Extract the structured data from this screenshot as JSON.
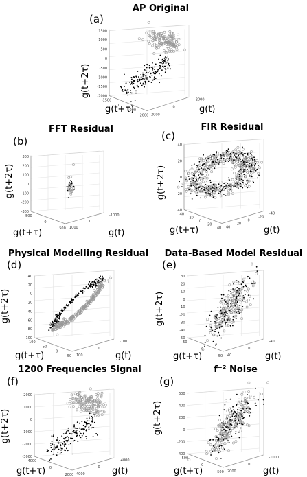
{
  "figure": {
    "panels": [
      {
        "id": "a",
        "letter": "(a)",
        "title": "AP Original",
        "xlabel": "g(t)",
        "ylabel": "g(t+τ)",
        "zlabel": "g(t+2τ)",
        "ticks_z": [
          "-2000",
          "-1500",
          "-1000",
          "-500",
          "0",
          "500",
          "1000",
          "1500"
        ],
        "ticks_y": [
          "-1500",
          "0",
          "1000",
          "2000"
        ],
        "ticks_x": [
          "-2000",
          "0",
          "2000"
        ]
      },
      {
        "id": "b",
        "letter": "(b)",
        "title": "FFT Residual",
        "xlabel": "g(t)",
        "ylabel": "g(t+τ)",
        "zlabel": "g(t+2τ)",
        "ticks_z": [
          "-300",
          "-200",
          "-100",
          "0",
          "100",
          "200",
          "300"
        ],
        "ticks_y": [
          "-500",
          "0",
          "500"
        ],
        "ticks_x": [
          "-1000",
          "0",
          "1000"
        ]
      },
      {
        "id": "c",
        "letter": "(c)",
        "title": "FIR Residual",
        "xlabel": "g(t)",
        "ylabel": "g(t+τ)",
        "zlabel": "g(t+2τ)",
        "ticks_z": [
          "-40",
          "-20",
          "0",
          "20",
          "40"
        ],
        "ticks_y": [
          "-40",
          "-20",
          "0",
          "20",
          "40"
        ],
        "ticks_x": [
          "-40",
          "-20",
          "0",
          "20",
          "40"
        ]
      },
      {
        "id": "d",
        "letter": "(d)",
        "title": "Physical Modelling Residual",
        "xlabel": "g(t)",
        "ylabel": "g(t+τ)",
        "zlabel": "g(t+2τ)",
        "ticks_z": [
          "-100",
          "-80",
          "-60",
          "-40",
          "-20",
          "0",
          "20",
          "40"
        ],
        "ticks_y": [
          "-100",
          "-50",
          "0",
          "50"
        ],
        "ticks_x": [
          "-100",
          "0",
          "100"
        ]
      },
      {
        "id": "e",
        "letter": "(e)",
        "title": "Data-Based Model Residual",
        "xlabel": "g(t)",
        "ylabel": "g(t+τ)",
        "zlabel": "g(t+2τ)",
        "ticks_z": [
          "-50",
          "-40",
          "-30",
          "-20",
          "-10",
          "0",
          "10",
          "20",
          "30"
        ],
        "ticks_y": [
          "-50",
          "0",
          "50"
        ],
        "ticks_x": [
          "-40",
          "0",
          "40"
        ]
      },
      {
        "id": "f",
        "letter": "(f)",
        "title": "1200 Frequencies Signal",
        "xlabel": "g(t)",
        "ylabel": "g(t+τ)",
        "zlabel": "g(t+2τ)",
        "ticks_z": [
          "-3000",
          "-2000",
          "-1000",
          "0",
          "1000",
          "2000"
        ],
        "ticks_y": [
          "-4000",
          "0",
          "2000"
        ],
        "ticks_x": [
          "-4000",
          "0",
          "4000"
        ]
      },
      {
        "id": "g",
        "letter": "(g)",
        "title": "f⁻² Noise",
        "xlabel": "g(t)",
        "ylabel": "g(t+τ)",
        "zlabel": "g(t+2τ)",
        "ticks_z": [
          "-400",
          "-200",
          "0",
          "200",
          "400",
          "600"
        ],
        "ticks_y": [
          "-500",
          "0",
          "500"
        ],
        "ticks_x": [
          "-1000",
          "0",
          "2000"
        ]
      }
    ]
  },
  "chart_data": [
    {
      "type": "scatter",
      "title": "AP Original",
      "xlabel": "g(t)",
      "ylabel": "g(t+τ)",
      "zlabel": "g(t+2τ)",
      "series": [
        {
          "color": "#999999",
          "marker": "o"
        },
        {
          "color": "#000000",
          "marker": "."
        }
      ],
      "shape": "two-cluster",
      "zlim": [
        -2000,
        1500
      ]
    },
    {
      "type": "scatter",
      "title": "FFT Residual",
      "xlabel": "g(t)",
      "ylabel": "g(t+τ)",
      "zlabel": "g(t+2τ)",
      "series": [
        {
          "color": "#999999",
          "marker": "o"
        },
        {
          "color": "#000000",
          "marker": "."
        }
      ],
      "shape": "compact-cluster",
      "zlim": [
        -300,
        300
      ]
    },
    {
      "type": "scatter",
      "title": "FIR Residual",
      "xlabel": "g(t)",
      "ylabel": "g(t+τ)",
      "zlabel": "g(t+2τ)",
      "series": [
        {
          "color": "#999999",
          "marker": "o"
        },
        {
          "color": "#000000",
          "marker": "."
        }
      ],
      "shape": "ring",
      "zlim": [
        -40,
        40
      ]
    },
    {
      "type": "scatter",
      "title": "Physical Modelling Residual",
      "xlabel": "g(t)",
      "ylabel": "g(t+τ)",
      "zlabel": "g(t+2τ)",
      "series": [
        {
          "color": "#999999",
          "marker": "o"
        },
        {
          "color": "#000000",
          "marker": "."
        }
      ],
      "shape": "elongated-loop",
      "zlim": [
        -100,
        40
      ]
    },
    {
      "type": "scatter",
      "title": "Data-Based Model Residual",
      "xlabel": "g(t)",
      "ylabel": "g(t+τ)",
      "zlabel": "g(t+2τ)",
      "series": [
        {
          "color": "#999999",
          "marker": "o"
        },
        {
          "color": "#000000",
          "marker": "."
        }
      ],
      "shape": "diffuse-band",
      "zlim": [
        -50,
        30
      ]
    },
    {
      "type": "scatter",
      "title": "1200 Frequencies Signal",
      "xlabel": "g(t)",
      "ylabel": "g(t+τ)",
      "zlabel": "g(t+2τ)",
      "series": [
        {
          "color": "#999999",
          "marker": "o"
        },
        {
          "color": "#000000",
          "marker": "."
        }
      ],
      "shape": "two-cluster",
      "zlim": [
        -3000,
        2000
      ]
    },
    {
      "type": "scatter",
      "title": "f⁻² Noise",
      "xlabel": "g(t)",
      "ylabel": "g(t+τ)",
      "zlabel": "g(t+2τ)",
      "series": [
        {
          "color": "#999999",
          "marker": "o"
        },
        {
          "color": "#000000",
          "marker": "."
        }
      ],
      "shape": "diffuse-band",
      "zlim": [
        -400,
        600
      ]
    }
  ]
}
